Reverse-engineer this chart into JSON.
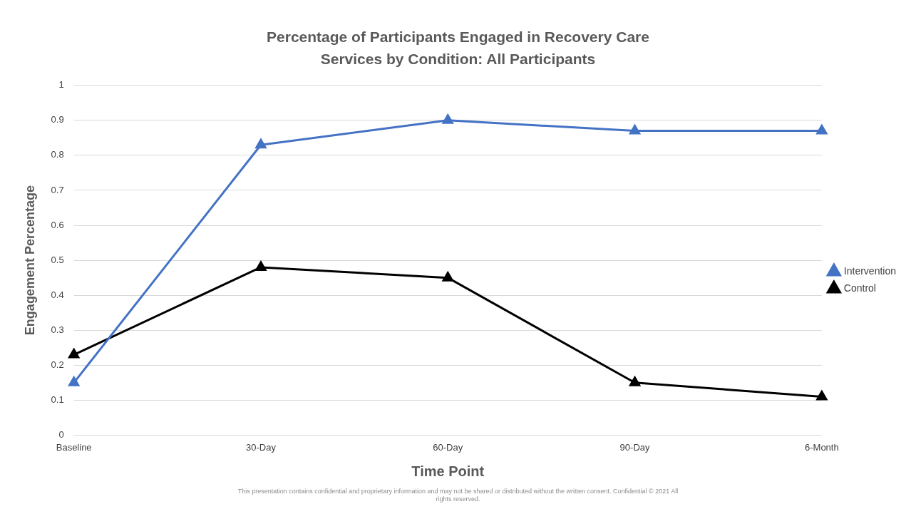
{
  "chart_data": {
    "type": "line",
    "title": "Percentage of Participants Engaged in Recovery Care Services by Condition: All Participants",
    "xlabel": "Time Point",
    "ylabel": "Engagement Percentage",
    "categories": [
      "Baseline",
      "30-Day",
      "60-Day",
      "90-Day",
      "6-Month"
    ],
    "series": [
      {
        "name": "Intervention",
        "color": "#4472c4",
        "values": [
          0.15,
          0.83,
          0.9,
          0.87,
          0.87
        ]
      },
      {
        "name": "Control",
        "color": "#000000",
        "values": [
          0.23,
          0.48,
          0.45,
          0.15,
          0.11
        ]
      }
    ],
    "ylim": [
      0,
      1
    ],
    "yticks": [
      0,
      0.1,
      0.2,
      0.3,
      0.4,
      0.5,
      0.6,
      0.7,
      0.8,
      0.9,
      1
    ],
    "grid": "y",
    "legend": "right",
    "marker": "triangle",
    "line_style": "solid",
    "annotations": [
      "This presentation contains confidential and proprietary information and may not be shared or distributed without the written consent. Confidential © 2021 All rights reserved."
    ]
  }
}
